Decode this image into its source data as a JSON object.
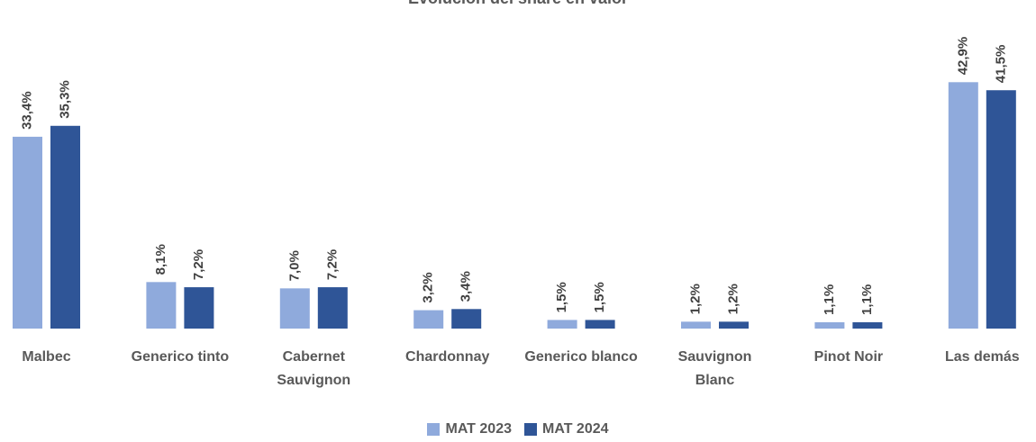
{
  "chart_data": {
    "type": "bar",
    "title": "Evolución del share en valor",
    "categories": [
      "Malbec",
      "Generico tinto",
      "Cabernet Sauvignon",
      "Chardonnay",
      "Generico blanco",
      "Sauvignon Blanc",
      "Pinot Noir",
      "Las demás"
    ],
    "series": [
      {
        "name": "MAT 2023",
        "color": "#8faadc",
        "values": [
          33.4,
          8.1,
          7.0,
          3.2,
          1.5,
          1.2,
          1.1,
          42.9
        ],
        "value_labels": [
          "33,4%",
          "8,1%",
          "7,0%",
          "3,2%",
          "1,5%",
          "1,2%",
          "1,1%",
          "42,9%"
        ]
      },
      {
        "name": "MAT 2024",
        "color": "#2f5597",
        "values": [
          35.3,
          7.2,
          7.2,
          3.4,
          1.5,
          1.2,
          1.1,
          41.5
        ],
        "value_labels": [
          "35,3%",
          "7,2%",
          "7,2%",
          "3,4%",
          "1,5%",
          "1,2%",
          "1,1%",
          "41,5%"
        ]
      }
    ],
    "ylim": [
      0,
      50
    ],
    "legend": "bottom"
  }
}
